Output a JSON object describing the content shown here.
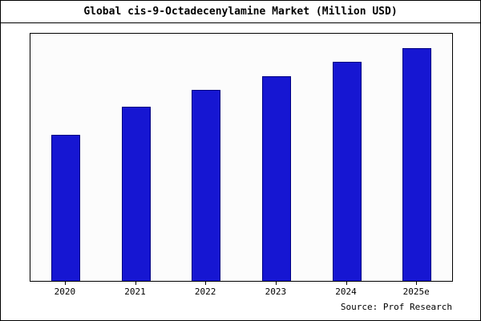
{
  "title": "Global cis-9-Octadecenylamine Market (Million USD)",
  "source": "Source: Prof Research",
  "colors": {
    "bar_fill": "#1616d2",
    "bar_edge": "#000080",
    "frame": "#000000"
  },
  "chart_data": {
    "type": "bar",
    "title": "Global cis-9-Octadecenylamine Market (Million USD)",
    "categories": [
      "2020",
      "2021",
      "2022",
      "2023",
      "2024",
      "2025e"
    ],
    "values": [
      62,
      74,
      81,
      87,
      93,
      99
    ],
    "xlabel": "",
    "ylabel": "",
    "ylim": [
      0,
      105
    ],
    "grid": false,
    "legend": "none",
    "y_axis_labels_visible": false,
    "annotation": "Source: Prof Research"
  }
}
